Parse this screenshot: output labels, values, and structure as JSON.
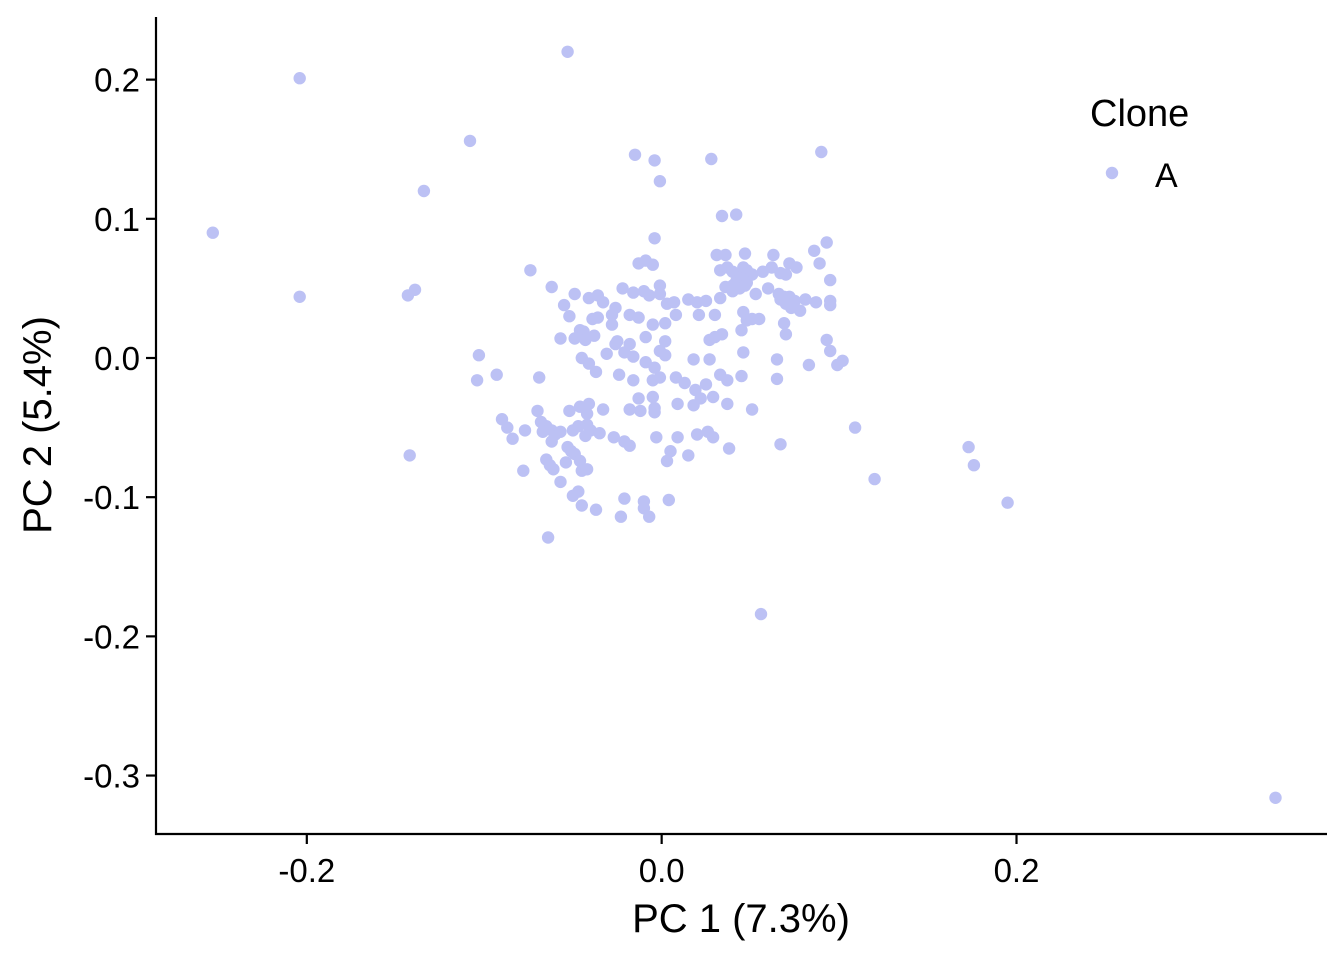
{
  "chart_data": {
    "type": "scatter",
    "xlabel": "PC 1 (7.3%)",
    "ylabel": "PC 2 (5.4%)",
    "xlim": [
      -0.285,
      0.375
    ],
    "ylim": [
      -0.342,
      0.245
    ],
    "x_ticks": [
      -0.2,
      0.0,
      0.2
    ],
    "x_tick_labels": [
      "-0.2",
      "0.0",
      "0.2"
    ],
    "y_ticks": [
      0.2,
      0.1,
      0.0,
      -0.1,
      -0.2,
      -0.3
    ],
    "y_tick_labels": [
      "0.2",
      "0.1",
      "0.0",
      "-0.1",
      "-0.2",
      "-0.3"
    ],
    "grid": false,
    "legend": {
      "title": "Clone",
      "placement": "top-right",
      "entries": [
        "A"
      ]
    },
    "series": [
      {
        "name": "A",
        "color": "#bcc1f4",
        "points": [
          [
            -0.053,
            0.22
          ],
          [
            -0.204,
            0.201
          ],
          [
            -0.108,
            0.156
          ],
          [
            -0.134,
            0.12
          ],
          [
            -0.253,
            0.09
          ],
          [
            -0.204,
            0.044
          ],
          [
            -0.139,
            0.049
          ],
          [
            -0.143,
            0.045
          ],
          [
            -0.142,
            -0.07
          ],
          [
            -0.074,
            0.063
          ],
          [
            -0.062,
            0.051
          ],
          [
            -0.015,
            0.146
          ],
          [
            -0.004,
            0.142
          ],
          [
            -0.001,
            0.127
          ],
          [
            0.028,
            0.143
          ],
          [
            0.09,
            0.148
          ],
          [
            0.034,
            0.102
          ],
          [
            0.042,
            0.103
          ],
          [
            -0.004,
            0.086
          ],
          [
            -0.013,
            0.068
          ],
          [
            -0.009,
            0.07
          ],
          [
            -0.005,
            0.067
          ],
          [
            0.031,
            0.074
          ],
          [
            0.036,
            0.074
          ],
          [
            0.047,
            0.075
          ],
          [
            0.063,
            0.074
          ],
          [
            0.072,
            0.068
          ],
          [
            0.076,
            0.065
          ],
          [
            0.086,
            0.077
          ],
          [
            0.089,
            0.068
          ],
          [
            0.093,
            0.083
          ],
          [
            0.095,
            0.056
          ],
          [
            0.033,
            0.063
          ],
          [
            0.037,
            0.065
          ],
          [
            0.04,
            0.062
          ],
          [
            0.043,
            0.06
          ],
          [
            0.046,
            0.065
          ],
          [
            0.048,
            0.063
          ],
          [
            0.051,
            0.06
          ],
          [
            0.057,
            0.062
          ],
          [
            0.062,
            0.065
          ],
          [
            0.067,
            0.061
          ],
          [
            0.07,
            0.06
          ],
          [
            0.036,
            0.051
          ],
          [
            0.04,
            0.052
          ],
          [
            0.042,
            0.055
          ],
          [
            0.045,
            0.057
          ],
          [
            0.048,
            0.054
          ],
          [
            0.04,
            0.048
          ],
          [
            0.044,
            0.05
          ],
          [
            0.047,
            0.052
          ],
          [
            0.066,
            0.046
          ],
          [
            0.069,
            0.044
          ],
          [
            0.067,
            0.042
          ],
          [
            0.072,
            0.044
          ],
          [
            0.075,
            0.041
          ],
          [
            0.07,
            0.039
          ],
          [
            0.078,
            0.034
          ],
          [
            0.087,
            0.04
          ],
          [
            0.095,
            0.038
          ],
          [
            0.095,
            0.041
          ],
          [
            -0.001,
            0.052
          ],
          [
            0.003,
            0.039
          ],
          [
            0.007,
            0.04
          ],
          [
            0.015,
            0.042
          ],
          [
            0.02,
            0.04
          ],
          [
            0.025,
            0.041
          ],
          [
            0.033,
            0.043
          ],
          [
            0.03,
            0.031
          ],
          [
            0.021,
            0.031
          ],
          [
            -0.049,
            0.046
          ],
          [
            -0.041,
            0.043
          ],
          [
            -0.036,
            0.045
          ],
          [
            -0.033,
            0.04
          ],
          [
            -0.026,
            0.036
          ],
          [
            -0.022,
            0.05
          ],
          [
            -0.016,
            0.047
          ],
          [
            -0.01,
            0.048
          ],
          [
            -0.007,
            0.045
          ],
          [
            -0.001,
            0.046
          ],
          [
            -0.055,
            0.038
          ],
          [
            -0.052,
            0.03
          ],
          [
            -0.046,
            0.02
          ],
          [
            -0.044,
            0.015
          ],
          [
            -0.039,
            0.028
          ],
          [
            -0.036,
            0.029
          ],
          [
            -0.028,
            0.031
          ],
          [
            -0.018,
            0.031
          ],
          [
            -0.013,
            0.029
          ],
          [
            -0.005,
            0.024
          ],
          [
            0.002,
            0.025
          ],
          [
            0.008,
            0.031
          ],
          [
            -0.009,
            0.015
          ],
          [
            0.002,
            0.012
          ],
          [
            -0.001,
            0.005
          ],
          [
            -0.028,
            0.024
          ],
          [
            -0.018,
            0.01
          ],
          [
            -0.025,
            0.012
          ],
          [
            0.046,
            0.033
          ],
          [
            0.048,
            0.027
          ],
          [
            0.051,
            0.028
          ],
          [
            0.055,
            0.028
          ],
          [
            0.027,
            0.013
          ],
          [
            0.03,
            0.015
          ],
          [
            0.034,
            0.017
          ],
          [
            0.045,
            0.02
          ],
          [
            0.07,
            0.017
          ],
          [
            0.093,
            0.013
          ],
          [
            0.095,
            0.005
          ],
          [
            0.053,
            0.046
          ],
          [
            0.073,
            0.036
          ],
          [
            0.06,
            0.05
          ],
          [
            0.069,
            0.025
          ],
          [
            0.081,
            0.042
          ],
          [
            -0.103,
            0.002
          ],
          [
            -0.104,
            -0.016
          ],
          [
            -0.093,
            -0.012
          ],
          [
            -0.069,
            -0.014
          ],
          [
            -0.057,
            0.014
          ],
          [
            -0.049,
            0.014
          ],
          [
            -0.044,
            0.019
          ],
          [
            -0.043,
            0.013
          ],
          [
            -0.038,
            0.016
          ],
          [
            -0.045,
            0.0
          ],
          [
            -0.041,
            -0.004
          ],
          [
            -0.037,
            -0.01
          ],
          [
            -0.031,
            0.003
          ],
          [
            -0.026,
            0.01
          ],
          [
            -0.021,
            0.004
          ],
          [
            -0.016,
            0.001
          ],
          [
            -0.009,
            -0.003
          ],
          [
            -0.004,
            -0.007
          ],
          [
            0.002,
            0.002
          ],
          [
            0.018,
            -0.001
          ],
          [
            0.027,
            -0.001
          ],
          [
            0.046,
            0.004
          ],
          [
            -0.024,
            -0.012
          ],
          [
            -0.016,
            -0.016
          ],
          [
            -0.005,
            -0.016
          ],
          [
            -0.001,
            -0.014
          ],
          [
            0.008,
            -0.014
          ],
          [
            0.013,
            -0.018
          ],
          [
            0.019,
            -0.023
          ],
          [
            0.025,
            -0.019
          ],
          [
            0.033,
            -0.012
          ],
          [
            0.037,
            -0.016
          ],
          [
            0.045,
            -0.013
          ],
          [
            0.065,
            -0.015
          ],
          [
            0.102,
            -0.002
          ],
          [
            0.099,
            -0.005
          ],
          [
            0.083,
            -0.005
          ],
          [
            0.065,
            -0.001
          ],
          [
            -0.09,
            -0.044
          ],
          [
            -0.087,
            -0.05
          ],
          [
            -0.084,
            -0.058
          ],
          [
            -0.077,
            -0.052
          ],
          [
            -0.07,
            -0.038
          ],
          [
            -0.068,
            -0.046
          ],
          [
            -0.065,
            -0.049
          ],
          [
            -0.067,
            -0.053
          ],
          [
            -0.062,
            -0.052
          ],
          [
            -0.06,
            -0.055
          ],
          [
            -0.057,
            -0.053
          ],
          [
            -0.052,
            -0.038
          ],
          [
            -0.05,
            -0.052
          ],
          [
            -0.047,
            -0.049
          ],
          [
            -0.042,
            -0.04
          ],
          [
            -0.046,
            -0.035
          ],
          [
            -0.041,
            -0.033
          ],
          [
            -0.042,
            -0.048
          ],
          [
            -0.04,
            -0.052
          ],
          [
            -0.043,
            -0.056
          ],
          [
            -0.035,
            -0.054
          ],
          [
            -0.033,
            -0.037
          ],
          [
            -0.018,
            -0.037
          ],
          [
            -0.013,
            -0.029
          ],
          [
            -0.005,
            -0.028
          ],
          [
            -0.012,
            -0.038
          ],
          [
            -0.004,
            -0.039
          ],
          [
            -0.004,
            -0.036
          ],
          [
            0.009,
            -0.033
          ],
          [
            0.018,
            -0.034
          ],
          [
            0.022,
            -0.029
          ],
          [
            0.029,
            -0.028
          ],
          [
            0.037,
            -0.033
          ],
          [
            0.051,
            -0.037
          ],
          [
            -0.027,
            -0.057
          ],
          [
            -0.021,
            -0.06
          ],
          [
            -0.018,
            -0.063
          ],
          [
            -0.003,
            -0.057
          ],
          [
            0.009,
            -0.057
          ],
          [
            0.02,
            -0.055
          ],
          [
            0.026,
            -0.053
          ],
          [
            0.029,
            -0.057
          ],
          [
            0.038,
            -0.065
          ],
          [
            0.067,
            -0.062
          ],
          [
            0.109,
            -0.05
          ],
          [
            -0.078,
            -0.081
          ],
          [
            -0.065,
            -0.073
          ],
          [
            -0.062,
            -0.06
          ],
          [
            -0.063,
            -0.077
          ],
          [
            -0.061,
            -0.08
          ],
          [
            -0.054,
            -0.075
          ],
          [
            -0.053,
            -0.064
          ],
          [
            -0.051,
            -0.067
          ],
          [
            -0.049,
            -0.069
          ],
          [
            -0.046,
            -0.074
          ],
          [
            -0.045,
            -0.081
          ],
          [
            -0.042,
            -0.08
          ],
          [
            0.005,
            -0.067
          ],
          [
            0.003,
            -0.074
          ],
          [
            0.015,
            -0.07
          ],
          [
            -0.057,
            -0.089
          ],
          [
            -0.05,
            -0.099
          ],
          [
            -0.047,
            -0.096
          ],
          [
            -0.045,
            -0.106
          ],
          [
            -0.037,
            -0.109
          ],
          [
            -0.021,
            -0.101
          ],
          [
            -0.01,
            -0.103
          ],
          [
            -0.01,
            -0.108
          ],
          [
            0.004,
            -0.102
          ],
          [
            -0.023,
            -0.114
          ],
          [
            -0.007,
            -0.114
          ],
          [
            -0.064,
            -0.129
          ],
          [
            0.056,
            -0.184
          ],
          [
            0.12,
            -0.087
          ],
          [
            0.173,
            -0.064
          ],
          [
            0.176,
            -0.077
          ],
          [
            0.195,
            -0.104
          ],
          [
            0.346,
            -0.316
          ]
        ]
      }
    ]
  }
}
